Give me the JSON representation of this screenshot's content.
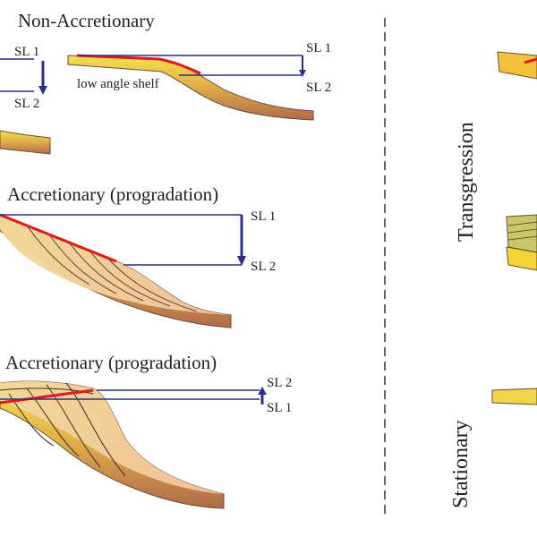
{
  "panels": {
    "top": {
      "title": "Non-Accretionary",
      "sl_left_1": "SL 1",
      "sl_left_2": "SL 2",
      "sl_right_1": "SL 1",
      "sl_right_2": "SL 2",
      "annotation": "low angle shelf"
    },
    "middle": {
      "title": "Accretionary (progradation)",
      "sl_1": "SL 1",
      "sl_2": "SL 2"
    },
    "bottom": {
      "title": "Accretionary (progradation)",
      "sl_2": "SL 2",
      "sl_1": "SL 1"
    }
  },
  "side_labels": {
    "transgression": "Transgression",
    "stationary": "Stationary"
  },
  "colors": {
    "sea_level_line": "#2b2f8a",
    "arrow": "#2b2f8a",
    "shelf_edge_line": "#e01818",
    "sediment_top": "#f4d84a",
    "sediment_bottom": "#b5704a",
    "clinoform_fill": "#f3c9a0",
    "divider": "#333333"
  }
}
